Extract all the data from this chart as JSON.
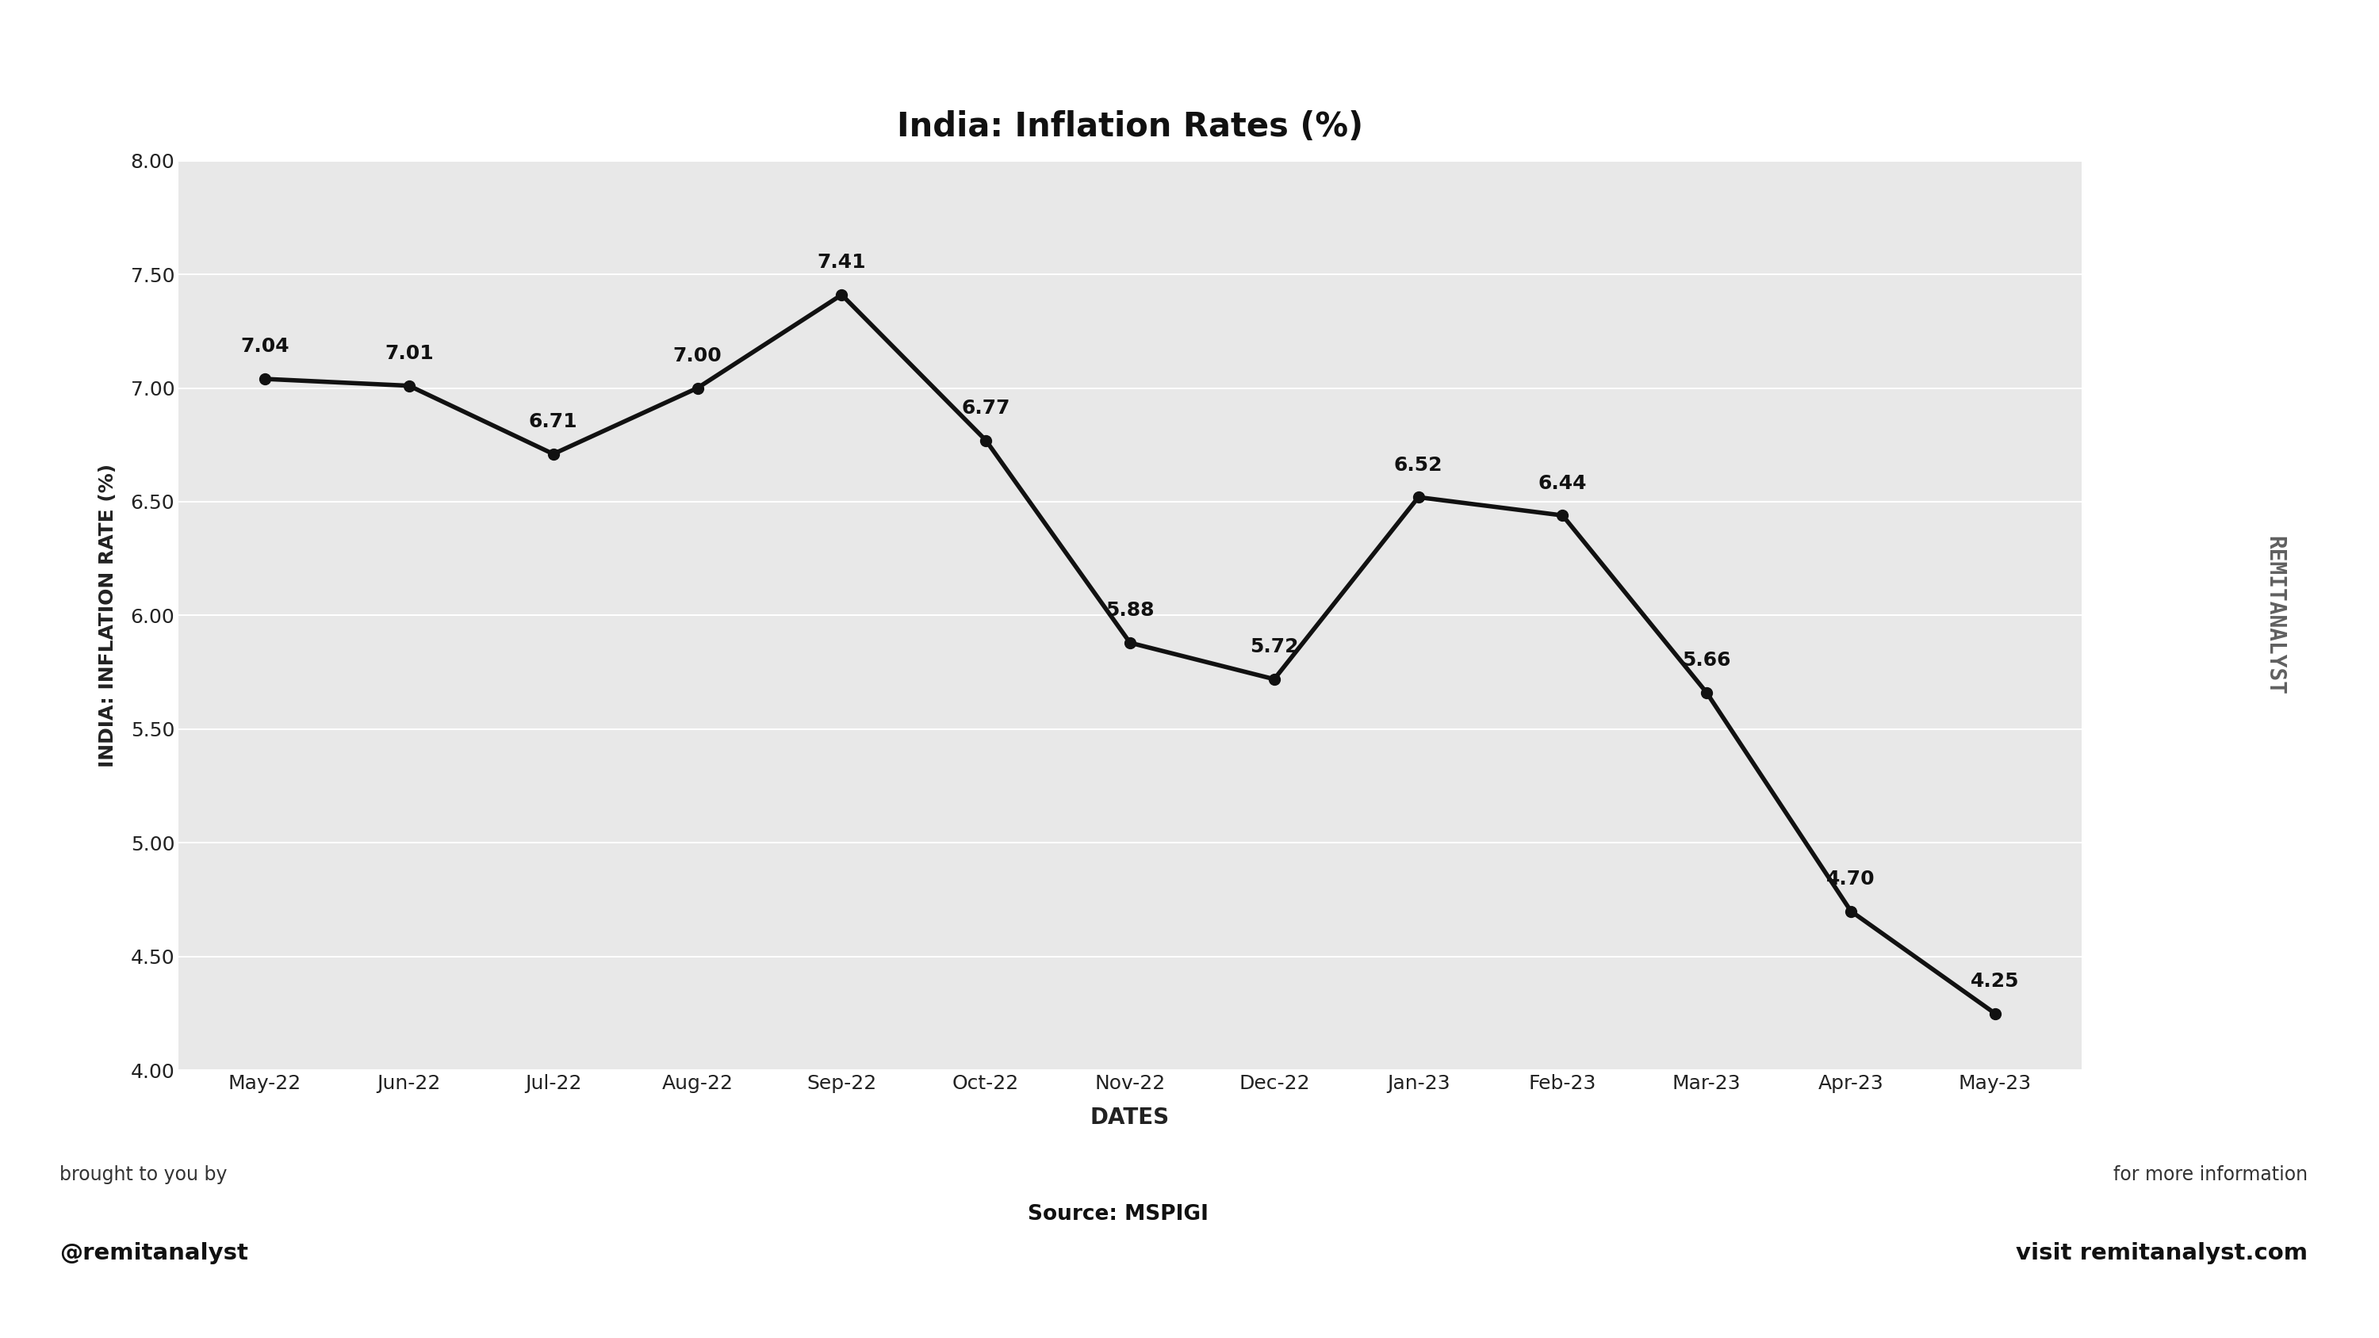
{
  "title": "India: Inflation Rates (%)",
  "xlabel": "DATES",
  "ylabel": "INDIA: INFLATION RATE (%)",
  "categories": [
    "May-22",
    "Jun-22",
    "Jul-22",
    "Aug-22",
    "Sep-22",
    "Oct-22",
    "Nov-22",
    "Dec-22",
    "Jan-23",
    "Feb-23",
    "Mar-23",
    "Apr-23",
    "May-23"
  ],
  "values": [
    7.04,
    7.01,
    6.71,
    7.0,
    7.41,
    6.77,
    5.88,
    5.72,
    6.52,
    6.44,
    5.66,
    4.7,
    4.25
  ],
  "ylim": [
    4.0,
    8.0
  ],
  "yticks": [
    4.0,
    4.5,
    5.0,
    5.5,
    6.0,
    6.5,
    7.0,
    7.5,
    8.0
  ],
  "line_color": "#111111",
  "line_width": 4.0,
  "marker_size": 10,
  "plot_bg_color": "#e8e8e8",
  "fig_bg_color": "#ffffff",
  "title_fontsize": 30,
  "axis_label_fontsize": 18,
  "tick_fontsize": 18,
  "data_label_fontsize": 18,
  "bottom_left_text1": "brought to you by",
  "bottom_left_text2": "@remitanalyst",
  "bottom_center_text": "Source: MSPIGI",
  "bottom_right_text1": "for more information",
  "bottom_right_text2": "visit remitanalyst.com",
  "right_watermark": "REMITANALYST",
  "right_watermark_color": "#444444"
}
